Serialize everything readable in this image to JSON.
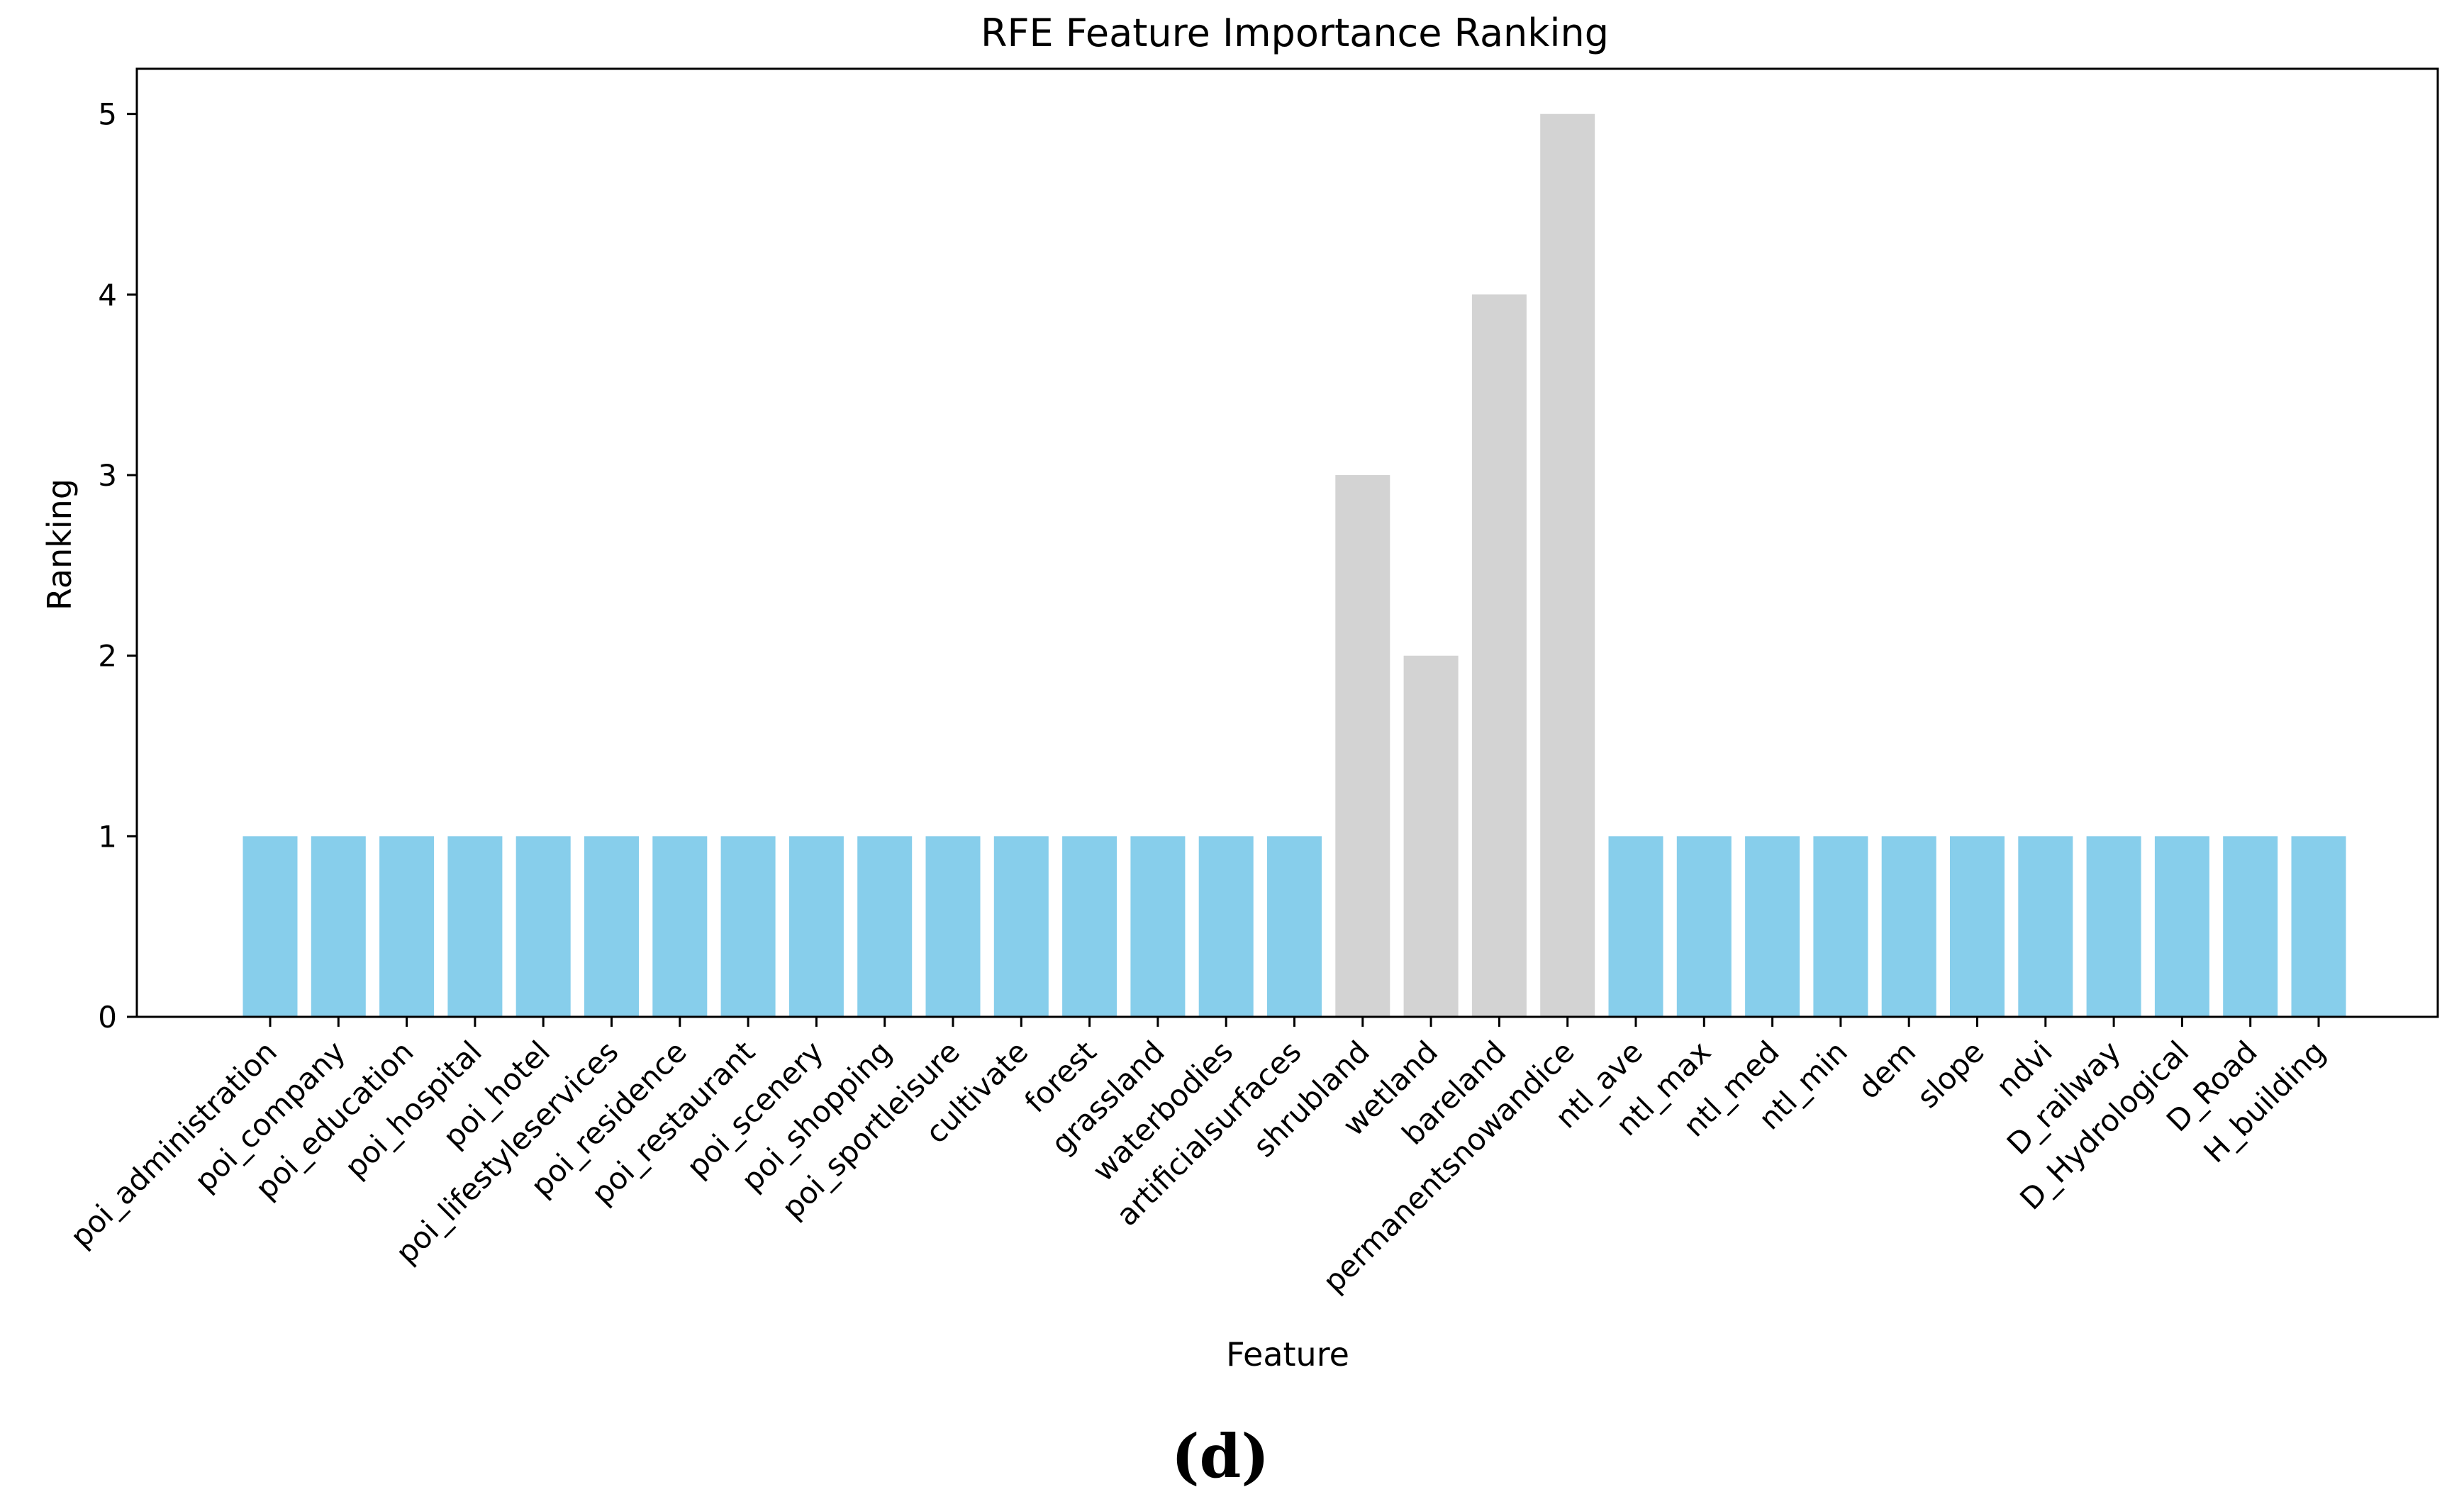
{
  "chart_data": {
    "type": "bar",
    "title": "RFE Feature Importance Ranking",
    "xlabel": "Feature",
    "ylabel": "Ranking",
    "ylim": [
      0,
      5.25
    ],
    "yticks": [
      0,
      1,
      2,
      3,
      4,
      5
    ],
    "grid": false,
    "categories": [
      "poi_administration",
      "poi_company",
      "poi_education",
      "poi_hospital",
      "poi_hotel",
      "poi_lifestyleservices",
      "poi_residence",
      "poi_restaurant",
      "poi_scenery",
      "poi_shopping",
      "poi_sportleisure",
      "cultivate",
      "forest",
      "grassland",
      "waterbodies",
      "artificialsurfaces",
      "shrubland",
      "wetland",
      "bareland",
      "permanentsnowandice",
      "ntl_ave",
      "ntl_max",
      "ntl_med",
      "ntl_min",
      "dem",
      "slope",
      "ndvi",
      "D_railway",
      "D_Hydrological",
      "D_Road",
      "H_building"
    ],
    "values": [
      1,
      1,
      1,
      1,
      1,
      1,
      1,
      1,
      1,
      1,
      1,
      1,
      1,
      1,
      1,
      1,
      3,
      2,
      4,
      5,
      1,
      1,
      1,
      1,
      1,
      1,
      1,
      1,
      1,
      1,
      1
    ],
    "colors": {
      "selected": "#87ceeb",
      "eliminated": "#d3d3d3"
    }
  },
  "caption": "(d)"
}
